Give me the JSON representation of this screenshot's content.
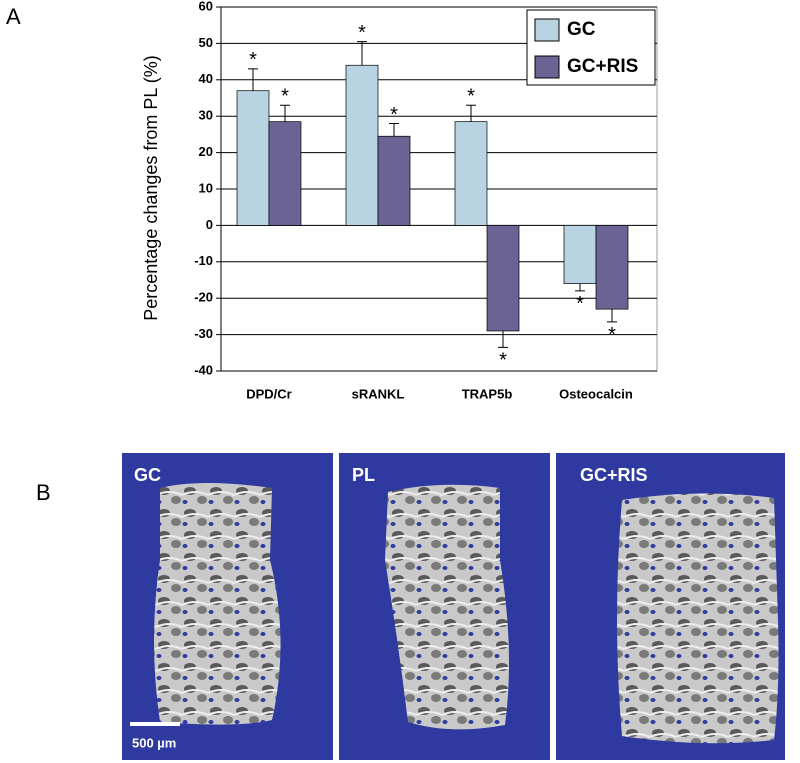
{
  "chart_data": {
    "type": "bar",
    "panel_label": "A",
    "ylabel": "Percentage changes from PL (%)",
    "categories": [
      "DPD/Cr",
      "sRANKL",
      "TRAP5b",
      "Osteocalcin"
    ],
    "series": [
      {
        "name": "GC",
        "color": "#b8d3e1",
        "values": [
          37,
          44,
          28.5,
          -16
        ],
        "errors": [
          6,
          6.5,
          4.5,
          2
        ],
        "significance": [
          "*",
          "*",
          "*",
          "*"
        ]
      },
      {
        "name": "GC+RIS",
        "color": "#6a6393",
        "values": [
          28.5,
          24.5,
          -29,
          -23
        ],
        "errors": [
          4.5,
          3.5,
          4.5,
          3.5
        ],
        "significance": [
          "*",
          "*",
          "*",
          "*"
        ]
      }
    ],
    "ylim": [
      -40,
      60
    ],
    "yticks": [
      -40,
      -30,
      -20,
      -10,
      0,
      10,
      20,
      30,
      40,
      50,
      60
    ],
    "grid": true,
    "legend": "top-right"
  },
  "panel_b": {
    "panel_label": "B",
    "images": [
      {
        "label": "GC"
      },
      {
        "label": "PL"
      },
      {
        "label": "GC+RIS"
      }
    ],
    "scale_bar": "500 µm"
  }
}
